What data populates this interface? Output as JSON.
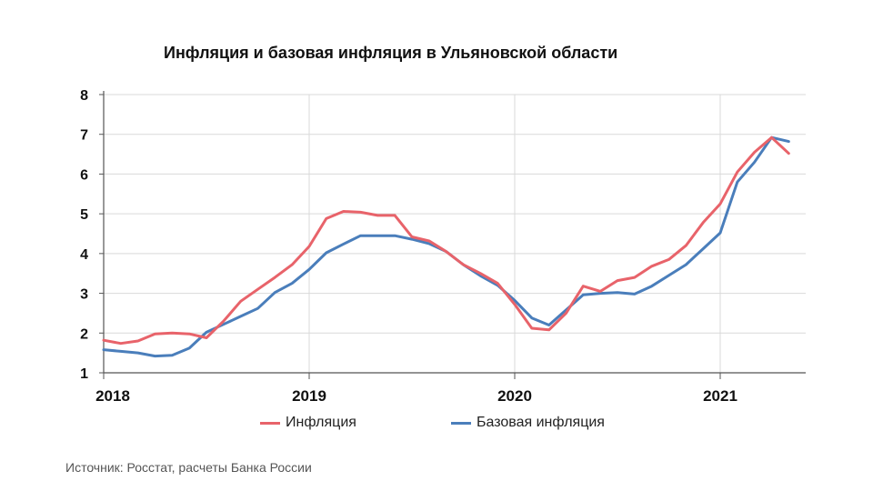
{
  "chart_data": {
    "type": "line",
    "title": "Инфляция и базовая инфляция в Ульяновской области",
    "xlabel": "",
    "ylabel": "",
    "ylim": [
      1,
      8
    ],
    "yticks": [
      1,
      2,
      3,
      4,
      5,
      6,
      7,
      8
    ],
    "year_labels": [
      "2018",
      "2019",
      "2020",
      "2021"
    ],
    "x_start": "2018-01",
    "x_end": "2021-05",
    "legend_position": "bottom",
    "series": [
      {
        "name": "Инфляция",
        "color": "#e8636a",
        "values": [
          1.82,
          1.74,
          1.8,
          1.98,
          2.0,
          1.98,
          1.88,
          2.3,
          2.8,
          3.1,
          3.4,
          3.72,
          4.18,
          4.88,
          5.06,
          5.04,
          4.96,
          4.96,
          4.42,
          4.32,
          4.05,
          3.72,
          3.5,
          3.25,
          2.72,
          2.12,
          2.08,
          2.5,
          3.18,
          3.05,
          3.32,
          3.4,
          3.68,
          3.85,
          4.2,
          4.78,
          5.25,
          6.05,
          6.55,
          6.92,
          6.52
        ]
      },
      {
        "name": "Базовая инфляция",
        "color": "#4a7ebb",
        "values": [
          1.58,
          1.54,
          1.5,
          1.42,
          1.44,
          1.62,
          2.02,
          2.22,
          2.42,
          2.62,
          3.02,
          3.25,
          3.6,
          4.02,
          4.24,
          4.45,
          4.45,
          4.45,
          4.36,
          4.25,
          4.05,
          3.72,
          3.44,
          3.2,
          2.82,
          2.38,
          2.2,
          2.58,
          2.96,
          3.0,
          3.02,
          2.98,
          3.18,
          3.45,
          3.72,
          4.12,
          4.52,
          5.8,
          6.3,
          6.92,
          6.82
        ]
      }
    ]
  },
  "source": "Источник: Росстат, расчеты Банка России"
}
